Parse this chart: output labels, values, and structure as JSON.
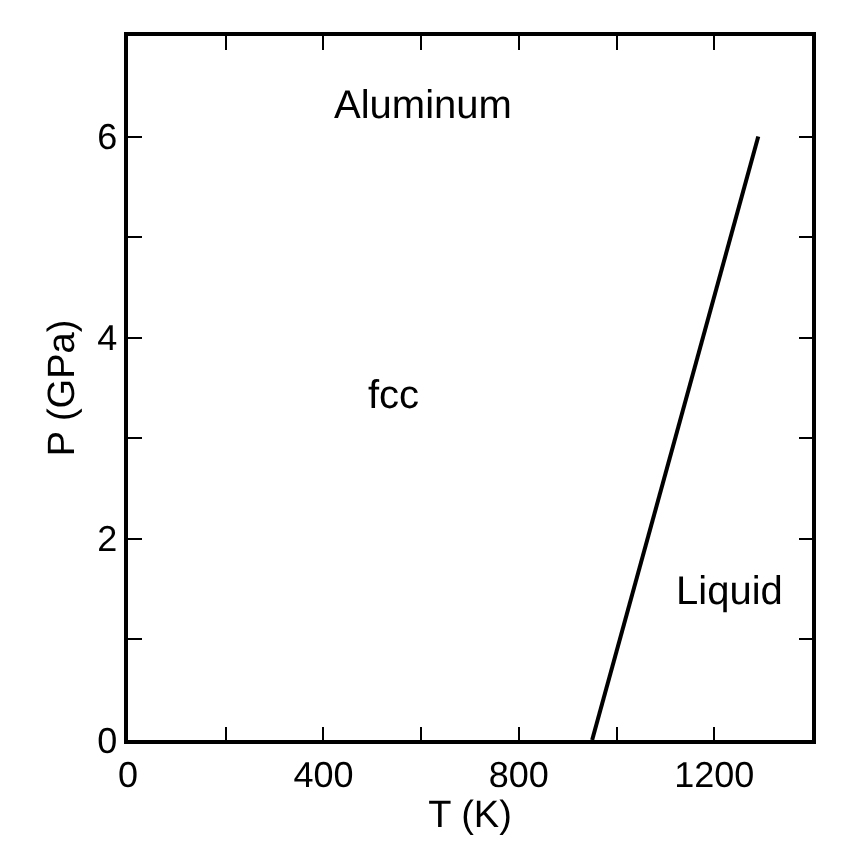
{
  "chart_data": {
    "type": "line",
    "xlabel": "T (K)",
    "ylabel": "P (GPa)",
    "x": [
      950,
      1290
    ],
    "series": [
      {
        "color": "#000000",
        "values": [
          0,
          6
        ]
      }
    ],
    "xlim": [
      0,
      1400
    ],
    "ylim": [
      0,
      7
    ],
    "xticks": [
      0,
      {
        "value": 200,
        "label": null
      },
      400,
      {
        "value": 600,
        "label": null
      },
      800,
      {
        "value": 1000,
        "label": null
      },
      1200
    ],
    "yticks": [
      0,
      {
        "value": 1,
        "label": null
      },
      2,
      {
        "value": 3,
        "label": null
      },
      4,
      {
        "value": 5,
        "label": null
      },
      6
    ],
    "annotations": [
      "Aluminum",
      "fcc",
      "Liquid"
    ],
    "marker": "none",
    "line_style": "solid"
  }
}
